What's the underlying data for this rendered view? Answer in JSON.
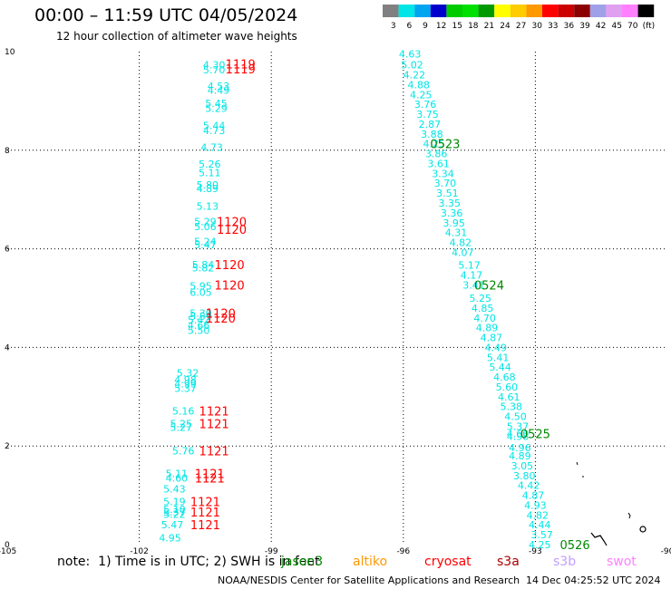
{
  "title": "00:00 – 11:59 UTC 04/05/2024",
  "subtitle": "12 hour collection of altimeter wave heights",
  "colorbar": {
    "labels": [
      "3",
      "6",
      "9",
      "12",
      "15",
      "18",
      "21",
      "24",
      "27",
      "30",
      "33",
      "36",
      "39",
      "42",
      "45",
      "70",
      "(ft)"
    ],
    "colors": [
      "#808080",
      "#00e5e5",
      "#00a5f0",
      "#0000cc",
      "#00cc00",
      "#00e000",
      "#009900",
      "#ffff00",
      "#ffcc00",
      "#ff9900",
      "#ff0000",
      "#cc0000",
      "#8b0000",
      "#a0a0e8",
      "#e0a0f0",
      "#ff80ff",
      "#000000"
    ]
  },
  "notes": {
    "text": "note:  1) Time is in UTC; 2) SWH is in feet",
    "missions": [
      {
        "name": "jason3",
        "color": "#008800"
      },
      {
        "name": "altiko",
        "color": "#ff9900"
      },
      {
        "name": "cryosat",
        "color": "#ff0000"
      },
      {
        "name": "s3a",
        "color": "#aa0000"
      },
      {
        "name": "s3b",
        "color": "#c0a0ff"
      },
      {
        "name": "swot",
        "color": "#ff80ff"
      }
    ]
  },
  "footer": {
    "credit": "NOAA/NESDIS Center for Satellite Applications and Research",
    "generated": "14 Dec 04:25:52 UTC 2024"
  },
  "chart_data": {
    "type": "scatter",
    "xlim": [
      -105,
      -90
    ],
    "ylim": [
      0,
      10
    ],
    "x_ticks": [
      -105,
      -102,
      -99,
      -96,
      -93,
      -90
    ],
    "x_tick_labels": [
      "-105",
      "-102",
      "-99",
      "-96",
      "-93",
      "-90"
    ],
    "y_ticks": [
      0,
      2,
      4,
      6,
      8,
      10
    ],
    "y_tick_labels": [
      "0",
      "2",
      "4",
      "6",
      "8",
      "10"
    ],
    "grid": true,
    "tracks": [
      {
        "mission": "cryosat",
        "label_color": "#00e5e5",
        "points": [
          {
            "x": -100.3,
            "y": 9.73,
            "v": "4.30"
          },
          {
            "x": -100.3,
            "y": 9.63,
            "v": "5.70"
          },
          {
            "x": -100.2,
            "y": 9.3,
            "v": "4.53"
          },
          {
            "x": -100.2,
            "y": 9.22,
            "v": "4.49"
          },
          {
            "x": -100.25,
            "y": 8.95,
            "v": "5.45"
          },
          {
            "x": -100.25,
            "y": 8.85,
            "v": "5.29"
          },
          {
            "x": -100.3,
            "y": 8.5,
            "v": "5.44"
          },
          {
            "x": -100.3,
            "y": 8.4,
            "v": "4.73"
          },
          {
            "x": -100.35,
            "y": 8.06,
            "v": "4.73"
          },
          {
            "x": -100.4,
            "y": 7.72,
            "v": "5.26"
          },
          {
            "x": -100.4,
            "y": 7.55,
            "v": "5.11"
          },
          {
            "x": -100.45,
            "y": 7.3,
            "v": "5.80"
          },
          {
            "x": -100.45,
            "y": 7.22,
            "v": "4.89"
          },
          {
            "x": -100.45,
            "y": 6.87,
            "v": "5.13"
          },
          {
            "x": -100.5,
            "y": 6.55,
            "v": "5.29"
          },
          {
            "x": -100.5,
            "y": 6.45,
            "v": "5.06"
          },
          {
            "x": -100.5,
            "y": 6.15,
            "v": "5.24"
          },
          {
            "x": -100.5,
            "y": 6.08,
            "v": "5.47"
          },
          {
            "x": -100.55,
            "y": 5.68,
            "v": "5.84"
          },
          {
            "x": -100.55,
            "y": 5.62,
            "v": "5.82"
          },
          {
            "x": -100.6,
            "y": 5.25,
            "v": "5.95"
          },
          {
            "x": -100.6,
            "y": 5.12,
            "v": "6.05"
          },
          {
            "x": -100.6,
            "y": 4.7,
            "v": "5.30"
          },
          {
            "x": -100.6,
            "y": 4.63,
            "v": "5.59"
          },
          {
            "x": -100.65,
            "y": 4.56,
            "v": "5.42"
          },
          {
            "x": -100.65,
            "y": 4.45,
            "v": "4.66"
          },
          {
            "x": -100.65,
            "y": 4.35,
            "v": "5.50"
          },
          {
            "x": -100.9,
            "y": 3.48,
            "v": "5.32"
          },
          {
            "x": -100.95,
            "y": 3.35,
            "v": "4.98"
          },
          {
            "x": -100.95,
            "y": 3.26,
            "v": "4.99"
          },
          {
            "x": -100.95,
            "y": 3.17,
            "v": "5.37"
          },
          {
            "x": -101.0,
            "y": 2.71,
            "v": "5.16"
          },
          {
            "x": -101.05,
            "y": 2.45,
            "v": "5.25"
          },
          {
            "x": -101.05,
            "y": 2.38,
            "v": "5.27"
          },
          {
            "x": -101.0,
            "y": 1.9,
            "v": "5.76"
          },
          {
            "x": -101.15,
            "y": 1.44,
            "v": "5.11"
          },
          {
            "x": -101.15,
            "y": 1.35,
            "v": "4.60"
          },
          {
            "x": -101.2,
            "y": 1.13,
            "v": "5.43"
          },
          {
            "x": -101.2,
            "y": 0.87,
            "v": "5.19"
          },
          {
            "x": -101.2,
            "y": 0.72,
            "v": "5.10"
          },
          {
            "x": -101.2,
            "y": 0.66,
            "v": "5.37"
          },
          {
            "x": -101.2,
            "y": 0.62,
            "v": "5.22"
          },
          {
            "x": -101.25,
            "y": 0.4,
            "v": "5.47"
          },
          {
            "x": -101.3,
            "y": 0.14,
            "v": "4.95"
          }
        ]
      },
      {
        "mission": "jason3",
        "label_color": "#00e5e5",
        "points": [
          {
            "x": -95.85,
            "y": 9.95,
            "v": "4.63"
          },
          {
            "x": -95.8,
            "y": 9.73,
            "v": "5.02"
          },
          {
            "x": -95.75,
            "y": 9.53,
            "v": "4.22"
          },
          {
            "x": -95.65,
            "y": 9.33,
            "v": "4.88"
          },
          {
            "x": -95.6,
            "y": 9.13,
            "v": "4.25"
          },
          {
            "x": -95.5,
            "y": 8.93,
            "v": "3.76"
          },
          {
            "x": -95.45,
            "y": 8.73,
            "v": "3.75"
          },
          {
            "x": -95.4,
            "y": 8.53,
            "v": "2.87"
          },
          {
            "x": -95.35,
            "y": 8.33,
            "v": "3.88"
          },
          {
            "x": -95.3,
            "y": 8.13,
            "v": "4.25"
          },
          {
            "x": -95.25,
            "y": 7.93,
            "v": "3.86"
          },
          {
            "x": -95.2,
            "y": 7.73,
            "v": "3.61"
          },
          {
            "x": -95.1,
            "y": 7.53,
            "v": "3.34"
          },
          {
            "x": -95.05,
            "y": 7.33,
            "v": "3.70"
          },
          {
            "x": -95.0,
            "y": 7.13,
            "v": "3.51"
          },
          {
            "x": -94.95,
            "y": 6.93,
            "v": "3.35"
          },
          {
            "x": -94.9,
            "y": 6.73,
            "v": "3.36"
          },
          {
            "x": -94.85,
            "y": 6.53,
            "v": "3.95"
          },
          {
            "x": -94.8,
            "y": 6.33,
            "v": "4.31"
          },
          {
            "x": -94.7,
            "y": 6.13,
            "v": "4.82"
          },
          {
            "x": -94.65,
            "y": 5.93,
            "v": "4.07"
          },
          {
            "x": -94.5,
            "y": 5.67,
            "v": "5.17"
          },
          {
            "x": -94.45,
            "y": 5.47,
            "v": "4.17"
          },
          {
            "x": -94.4,
            "y": 5.27,
            "v": "3.41"
          },
          {
            "x": -94.25,
            "y": 5.0,
            "v": "5.25"
          },
          {
            "x": -94.2,
            "y": 4.8,
            "v": "4.85"
          },
          {
            "x": -94.15,
            "y": 4.6,
            "v": "4.70"
          },
          {
            "x": -94.1,
            "y": 4.4,
            "v": "4.89"
          },
          {
            "x": -94.0,
            "y": 4.2,
            "v": "4.87"
          },
          {
            "x": -93.9,
            "y": 4.0,
            "v": "4.49"
          },
          {
            "x": -93.85,
            "y": 3.8,
            "v": "5.41"
          },
          {
            "x": -93.8,
            "y": 3.6,
            "v": "5.44"
          },
          {
            "x": -93.7,
            "y": 3.4,
            "v": "4.68"
          },
          {
            "x": -93.65,
            "y": 3.2,
            "v": "5.60"
          },
          {
            "x": -93.6,
            "y": 3.0,
            "v": "4.61"
          },
          {
            "x": -93.55,
            "y": 2.8,
            "v": "5.38"
          },
          {
            "x": -93.45,
            "y": 2.6,
            "v": "4.50"
          },
          {
            "x": -93.4,
            "y": 2.4,
            "v": "5.37"
          },
          {
            "x": -93.4,
            "y": 2.25,
            "v": "4.60"
          },
          {
            "x": -93.4,
            "y": 2.2,
            "v": "4.98"
          },
          {
            "x": -93.35,
            "y": 1.97,
            "v": "4.96"
          },
          {
            "x": -93.35,
            "y": 1.8,
            "v": "4.89"
          },
          {
            "x": -93.3,
            "y": 1.6,
            "v": "3.05"
          },
          {
            "x": -93.25,
            "y": 1.4,
            "v": "3.80"
          },
          {
            "x": -93.15,
            "y": 1.2,
            "v": "4.42"
          },
          {
            "x": -93.05,
            "y": 1.0,
            "v": "4.87"
          },
          {
            "x": -93.0,
            "y": 0.8,
            "v": "4.93"
          },
          {
            "x": -92.95,
            "y": 0.6,
            "v": "4.82"
          },
          {
            "x": -92.9,
            "y": 0.4,
            "v": "4.44"
          },
          {
            "x": -92.85,
            "y": 0.2,
            "v": "3.57"
          },
          {
            "x": -92.9,
            "y": 0.0,
            "v": "4.25"
          }
        ]
      }
    ],
    "time_labels": [
      {
        "x": -99.7,
        "y": 9.75,
        "text": "1119",
        "color": "#ff0000"
      },
      {
        "x": -99.7,
        "y": 9.65,
        "text": "1119",
        "color": "#ff0000"
      },
      {
        "x": -99.9,
        "y": 6.55,
        "text": "1120",
        "color": "#ff0000"
      },
      {
        "x": -99.9,
        "y": 6.4,
        "text": "1120",
        "color": "#ff0000"
      },
      {
        "x": -99.95,
        "y": 5.68,
        "text": "1120",
        "color": "#ff0000"
      },
      {
        "x": -99.95,
        "y": 5.27,
        "text": "1120",
        "color": "#ff0000"
      },
      {
        "x": -100.15,
        "y": 4.7,
        "text": "1120",
        "color": "#ff0000"
      },
      {
        "x": -100.15,
        "y": 4.6,
        "text": "1120",
        "color": "#ff0000"
      },
      {
        "x": -100.3,
        "y": 2.71,
        "text": "1121",
        "color": "#ff0000"
      },
      {
        "x": -100.3,
        "y": 2.45,
        "text": "1121",
        "color": "#ff0000"
      },
      {
        "x": -100.3,
        "y": 1.9,
        "text": "1121",
        "color": "#ff0000"
      },
      {
        "x": -100.4,
        "y": 1.44,
        "text": "1121",
        "color": "#ff0000"
      },
      {
        "x": -100.4,
        "y": 1.35,
        "text": "1121",
        "color": "#ff0000"
      },
      {
        "x": -100.5,
        "y": 0.87,
        "text": "1121",
        "color": "#ff0000"
      },
      {
        "x": -100.5,
        "y": 0.66,
        "text": "1121",
        "color": "#ff0000"
      },
      {
        "x": -100.5,
        "y": 0.4,
        "text": "1121",
        "color": "#ff0000"
      },
      {
        "x": -95.05,
        "y": 8.13,
        "text": "0523",
        "color": "#008800"
      },
      {
        "x": -94.05,
        "y": 5.27,
        "text": "0524",
        "color": "#008800"
      },
      {
        "x": -93.0,
        "y": 2.25,
        "text": "0525",
        "color": "#008800"
      },
      {
        "x": -92.1,
        "y": 0.0,
        "text": "0526",
        "color": "#008800"
      }
    ]
  }
}
